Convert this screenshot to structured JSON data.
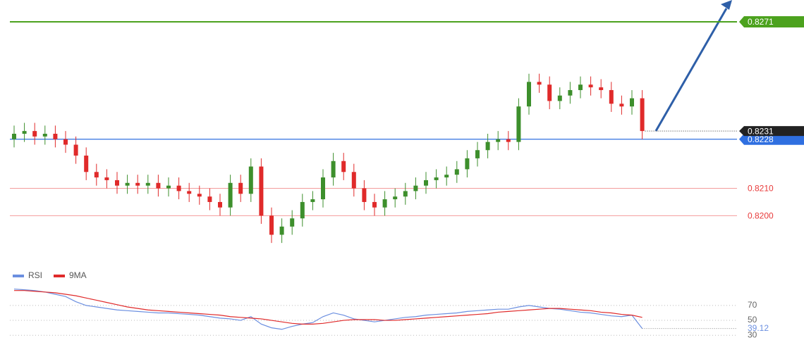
{
  "chart_data": [
    {
      "type": "candlestick",
      "up_color": "#3d8f2c",
      "down_color": "#e02a2a",
      "ylim": [
        0.8181,
        0.8279
      ],
      "open": [
        0.8228,
        0.823,
        0.8231,
        0.8229,
        0.823,
        0.8228,
        0.8226,
        0.8222,
        0.8216,
        0.8214,
        0.8213,
        0.8211,
        0.8212,
        0.8211,
        0.8212,
        0.821,
        0.8211,
        0.8209,
        0.8208,
        0.8207,
        0.8205,
        0.8203,
        0.8212,
        0.8208,
        0.8218,
        0.82,
        0.8193,
        0.8196,
        0.8199,
        0.8205,
        0.8206,
        0.8214,
        0.822,
        0.8216,
        0.821,
        0.8205,
        0.8203,
        0.8206,
        0.8207,
        0.8209,
        0.8211,
        0.8213,
        0.8214,
        0.8215,
        0.8217,
        0.8221,
        0.8224,
        0.8227,
        0.8228,
        0.8227,
        0.824,
        0.8249,
        0.8248,
        0.8242,
        0.8244,
        0.8246,
        0.8248,
        0.8247,
        0.8246,
        0.8241,
        0.824,
        0.8243
      ],
      "high": [
        0.8233,
        0.8234,
        0.8234,
        0.8233,
        0.8233,
        0.8231,
        0.8229,
        0.8225,
        0.8219,
        0.8217,
        0.8216,
        0.8215,
        0.8215,
        0.8215,
        0.8215,
        0.8214,
        0.8214,
        0.8212,
        0.8211,
        0.821,
        0.8208,
        0.8215,
        0.8215,
        0.8221,
        0.8221,
        0.8203,
        0.8199,
        0.8202,
        0.8208,
        0.8209,
        0.8217,
        0.8223,
        0.8223,
        0.8219,
        0.8213,
        0.8208,
        0.8209,
        0.821,
        0.8212,
        0.8214,
        0.8216,
        0.8217,
        0.8218,
        0.822,
        0.8224,
        0.8227,
        0.823,
        0.8231,
        0.8231,
        0.8243,
        0.8252,
        0.8252,
        0.8251,
        0.8247,
        0.8249,
        0.8251,
        0.8251,
        0.825,
        0.8249,
        0.8244,
        0.8246,
        0.8246
      ],
      "low": [
        0.8225,
        0.8227,
        0.8226,
        0.8226,
        0.8225,
        0.8223,
        0.8219,
        0.8213,
        0.8211,
        0.821,
        0.8208,
        0.8208,
        0.8208,
        0.8208,
        0.8207,
        0.8207,
        0.8206,
        0.8205,
        0.8204,
        0.8202,
        0.82,
        0.82,
        0.8205,
        0.8205,
        0.8197,
        0.819,
        0.819,
        0.8193,
        0.8196,
        0.8202,
        0.8203,
        0.8211,
        0.8213,
        0.8207,
        0.8202,
        0.82,
        0.82,
        0.8203,
        0.8204,
        0.8206,
        0.8208,
        0.821,
        0.8211,
        0.8212,
        0.8214,
        0.8218,
        0.8221,
        0.8224,
        0.8224,
        0.8224,
        0.8237,
        0.8245,
        0.8239,
        0.8239,
        0.8241,
        0.8243,
        0.8244,
        0.8243,
        0.8238,
        0.8237,
        0.8237,
        0.8228
      ],
      "close": [
        0.823,
        0.8231,
        0.8229,
        0.823,
        0.8228,
        0.8226,
        0.8222,
        0.8216,
        0.8214,
        0.8213,
        0.8211,
        0.8212,
        0.8211,
        0.8212,
        0.821,
        0.8211,
        0.8209,
        0.8208,
        0.8207,
        0.8205,
        0.8203,
        0.8212,
        0.8208,
        0.8218,
        0.82,
        0.8193,
        0.8196,
        0.8199,
        0.8205,
        0.8206,
        0.8214,
        0.822,
        0.8216,
        0.821,
        0.8205,
        0.8203,
        0.8206,
        0.8207,
        0.8209,
        0.8211,
        0.8213,
        0.8214,
        0.8215,
        0.8217,
        0.8221,
        0.8224,
        0.8227,
        0.8228,
        0.8227,
        0.824,
        0.8249,
        0.8248,
        0.8242,
        0.8244,
        0.8246,
        0.8248,
        0.8247,
        0.8246,
        0.8241,
        0.824,
        0.8243,
        0.8231
      ],
      "levels": [
        {
          "value": 0.8271,
          "color": "#4ca21e",
          "box": true
        },
        {
          "value": 0.8228,
          "color": "#2f6fe0",
          "box": true
        },
        {
          "value": 0.821,
          "label": "0.8210",
          "color": "#e83a3a",
          "box": false
        },
        {
          "value": 0.82,
          "label": "0.8200",
          "color": "#e83a3a",
          "box": false
        }
      ]
    },
    {
      "type": "line",
      "ylim": [
        17,
        102
      ],
      "yticks": [
        70,
        50,
        30
      ],
      "series": [
        {
          "name": "RSI",
          "color": "#6b8fe0",
          "values": [
            92,
            91,
            90,
            88,
            85,
            82,
            75,
            70,
            68,
            66,
            64,
            63,
            62,
            61,
            60,
            60,
            59,
            58,
            57,
            55,
            53,
            52,
            50,
            55,
            45,
            40,
            38,
            42,
            45,
            47,
            55,
            60,
            57,
            52,
            50,
            48,
            50,
            52,
            54,
            55,
            57,
            58,
            59,
            60,
            62,
            63,
            64,
            65,
            65,
            68,
            70,
            68,
            66,
            65,
            63,
            61,
            60,
            58,
            56,
            55,
            57,
            39.12
          ]
        },
        {
          "name": "9MA",
          "color": "#e02a2a",
          "values": [
            90,
            90,
            89,
            88,
            87,
            85,
            83,
            80,
            77,
            74,
            71,
            68,
            66,
            64,
            63,
            62,
            61,
            60,
            59,
            58,
            57,
            55,
            54,
            53,
            52,
            50,
            48,
            46,
            45,
            45,
            46,
            48,
            50,
            51,
            51,
            51,
            50,
            50,
            51,
            52,
            53,
            54,
            55,
            56,
            57,
            58,
            59,
            61,
            62,
            63,
            64,
            65,
            66,
            66,
            65,
            64,
            63,
            61,
            60,
            58,
            57,
            54
          ]
        }
      ]
    }
  ]
}
